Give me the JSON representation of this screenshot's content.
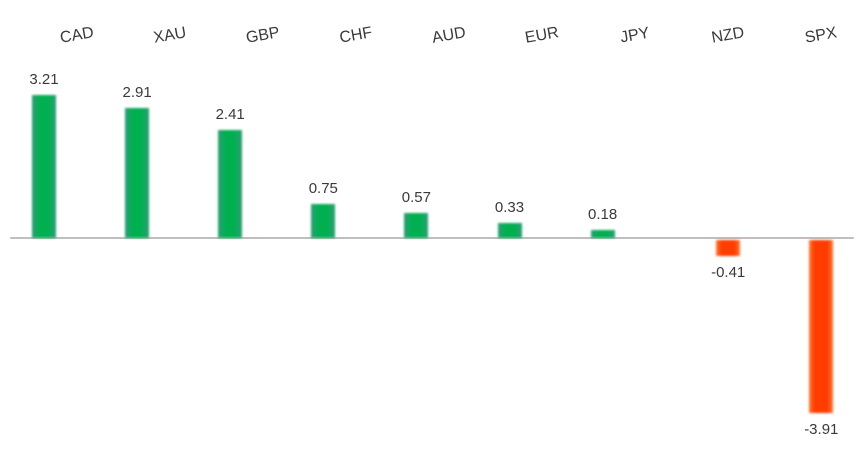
{
  "chart_data": {
    "type": "bar",
    "categories": [
      "CAD",
      "XAU",
      "GBP",
      "CHF",
      "AUD",
      "EUR",
      "JPY",
      "NZD",
      "SPX"
    ],
    "values": [
      3.21,
      2.91,
      2.41,
      0.75,
      0.57,
      0.33,
      0.18,
      -0.41,
      -3.91
    ],
    "value_labels": [
      "3.21",
      "2.91",
      "2.41",
      "0.75",
      "0.57",
      "0.33",
      "0.18",
      "-0.41",
      "-3.91"
    ],
    "title": "",
    "xlabel": "",
    "ylabel": "",
    "ylim": [
      -4.5,
      3.6
    ],
    "grid": false,
    "legend": false,
    "category_labels_position": "top",
    "category_labels_rotation_deg": -10,
    "colors": {
      "positive_core": "#00B050",
      "positive_edge": "#2F9C78",
      "negative_core": "#FF3D00",
      "negative_edge": "#FF7A38",
      "axis_line": "#BFBFBF",
      "label_text": "#3A3A3A",
      "background": "#FFFFFF"
    }
  }
}
